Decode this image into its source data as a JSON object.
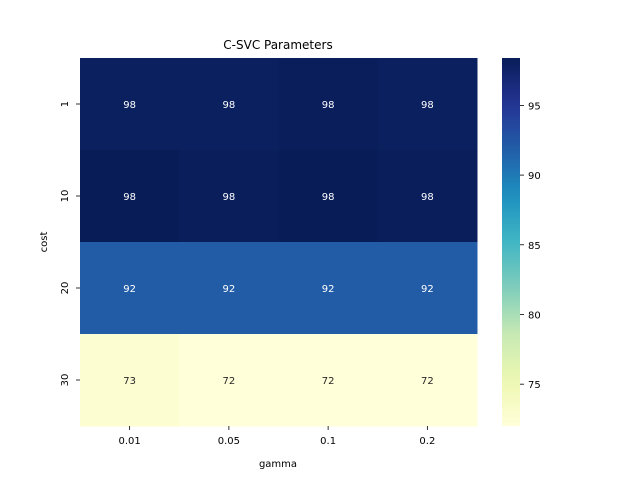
{
  "chart_data": {
    "type": "heatmap",
    "title": "C-SVC Parameters",
    "xlabel": "gamma",
    "ylabel": "cost",
    "x_categories": [
      "0.01",
      "0.05",
      "0.1",
      "0.2"
    ],
    "y_categories": [
      "1",
      "10",
      "20",
      "30"
    ],
    "values": [
      [
        98.0,
        98.0,
        98.2,
        98.0
      ],
      [
        98.4,
        98.2,
        98.4,
        98.2
      ],
      [
        92.0,
        92.0,
        92.0,
        92.0
      ],
      [
        72.6,
        72.0,
        72.0,
        72.0
      ]
    ],
    "cell_labels": [
      [
        "98",
        "98",
        "98",
        "98"
      ],
      [
        "98",
        "98",
        "98",
        "98"
      ],
      [
        "92",
        "92",
        "92",
        "92"
      ],
      [
        "73",
        "72",
        "72",
        "72"
      ]
    ],
    "colormap": "YlGnBu",
    "colorbar": {
      "vmin": 72.0,
      "vmax": 98.4,
      "ticks": [
        "75",
        "80",
        "85",
        "90",
        "95"
      ]
    }
  }
}
